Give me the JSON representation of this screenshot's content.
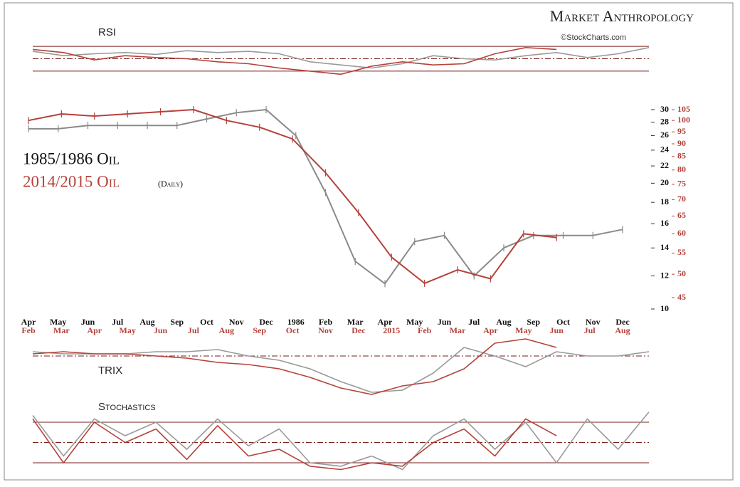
{
  "header": {
    "title": "Market Anthropology",
    "source": "©StockCharts.com"
  },
  "chart_data": [
    {
      "type": "line",
      "title": "RSI",
      "ylim": [
        0,
        100
      ],
      "hlines": [
        30,
        50,
        70
      ],
      "series": [
        {
          "name": "1985/1986 Oil RSI",
          "color": "#9a9a9a",
          "values": [
            62,
            55,
            58,
            60,
            57,
            63,
            60,
            62,
            58,
            45,
            40,
            35,
            42,
            55,
            50,
            48,
            55,
            60,
            52,
            58,
            68
          ]
        },
        {
          "name": "2014/2015 Oil RSI",
          "color": "#b5413a",
          "values": [
            65,
            60,
            48,
            55,
            52,
            50,
            45,
            42,
            35,
            30,
            25,
            38,
            45,
            40,
            42,
            58,
            68,
            65,
            null,
            null,
            null
          ]
        }
      ]
    },
    {
      "type": "line",
      "title": "1985/1986 Oil",
      "subtitle": "2014/2015 Oil",
      "annotation": "(Daily)",
      "log_scale": true,
      "ylim": [
        10,
        30
      ],
      "yticks": [
        10,
        12,
        14,
        16,
        18,
        20,
        22,
        24,
        26,
        28,
        30
      ],
      "y2lim": [
        45,
        105
      ],
      "y2ticks": [
        45,
        50,
        55,
        60,
        65,
        70,
        75,
        80,
        85,
        90,
        95,
        100,
        105
      ],
      "series": [
        {
          "name": "1985/1986 Oil",
          "color": "#8a8a8a",
          "categories": [
            "Apr",
            "May",
            "Jun",
            "Jul",
            "Aug",
            "Sep",
            "Oct",
            "Nov",
            "Dec",
            "1986",
            "Feb",
            "Mar",
            "Apr",
            "May",
            "Jun",
            "Jul",
            "Aug",
            "Sep",
            "Oct",
            "Nov",
            "Dec"
          ],
          "values": [
            27,
            27,
            27.5,
            27.5,
            27.5,
            27.5,
            28.5,
            29.5,
            30,
            26,
            19,
            13,
            11.5,
            14.5,
            15,
            12,
            14,
            15,
            15,
            15,
            15.5
          ]
        },
        {
          "name": "2014/2015 Oil",
          "color": "#b5413a",
          "axis": "y2",
          "categories": [
            "Feb",
            "Mar",
            "Apr",
            "May",
            "Jun",
            "Jul",
            "Aug",
            "Sep",
            "Oct",
            "Nov",
            "Dec",
            "2015",
            "Feb",
            "Mar",
            "Apr",
            "May",
            "Jun",
            "Jul",
            "Aug"
          ],
          "values": [
            100,
            103,
            102,
            103,
            104,
            105,
            100,
            97,
            92,
            79,
            66,
            54,
            48,
            51,
            49,
            60,
            59,
            null,
            null
          ]
        }
      ]
    },
    {
      "type": "line",
      "title": "TRIX",
      "ylim": [
        -1,
        1
      ],
      "hlines": [
        0
      ],
      "series": [
        {
          "name": "1985/1986 Oil TRIX",
          "color": "#9a9a9a",
          "values": [
            0.1,
            0.05,
            0.05,
            0.05,
            0.1,
            0.1,
            0.15,
            0.0,
            -0.1,
            -0.3,
            -0.6,
            -0.85,
            -0.8,
            -0.4,
            0.2,
            0.0,
            -0.25,
            0.1,
            0.0,
            0.0,
            0.1
          ]
        },
        {
          "name": "2014/2015 Oil TRIX",
          "color": "#b5413a",
          "values": [
            0.05,
            0.1,
            0.05,
            0.05,
            0.0,
            -0.05,
            -0.15,
            -0.2,
            -0.3,
            -0.5,
            -0.75,
            -0.9,
            -0.7,
            -0.6,
            -0.3,
            0.3,
            0.4,
            0.2,
            null,
            null,
            null
          ]
        }
      ]
    },
    {
      "type": "line",
      "title": "Stochastics",
      "ylim": [
        0,
        100
      ],
      "hlines": [
        20,
        50,
        80
      ],
      "series": [
        {
          "name": "1985/1986 Oil Stochastics",
          "color": "#9a9a9a",
          "values": [
            90,
            30,
            85,
            60,
            80,
            40,
            85,
            45,
            70,
            20,
            15,
            30,
            10,
            60,
            85,
            40,
            80,
            20,
            85,
            40,
            95
          ]
        },
        {
          "name": "2014/2015 Oil Stochastics",
          "color": "#b5413a",
          "values": [
            85,
            20,
            80,
            50,
            70,
            25,
            75,
            30,
            40,
            15,
            10,
            20,
            15,
            50,
            70,
            30,
            85,
            60,
            null,
            null,
            null
          ]
        }
      ]
    }
  ]
}
